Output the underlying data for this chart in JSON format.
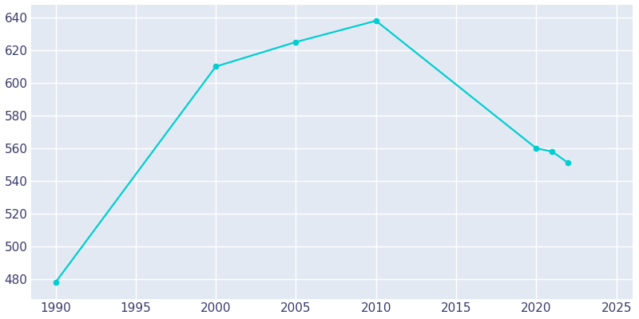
{
  "years": [
    1990,
    2000,
    2005,
    2010,
    2020,
    2021,
    2022
  ],
  "population": [
    478,
    610,
    625,
    638,
    560,
    558,
    551
  ],
  "line_color": "#00CED1",
  "bg_color": "#E3E9F3",
  "outer_bg": "#ffffff",
  "grid_color": "#ffffff",
  "tick_color": "#3a3a6a",
  "xlim": [
    1988.5,
    2026
  ],
  "ylim": [
    468,
    648
  ],
  "yticks": [
    480,
    500,
    520,
    540,
    560,
    580,
    600,
    620,
    640
  ],
  "xticks": [
    1990,
    1995,
    2000,
    2005,
    2010,
    2015,
    2020,
    2025
  ],
  "linewidth": 1.6,
  "markersize": 4.5
}
